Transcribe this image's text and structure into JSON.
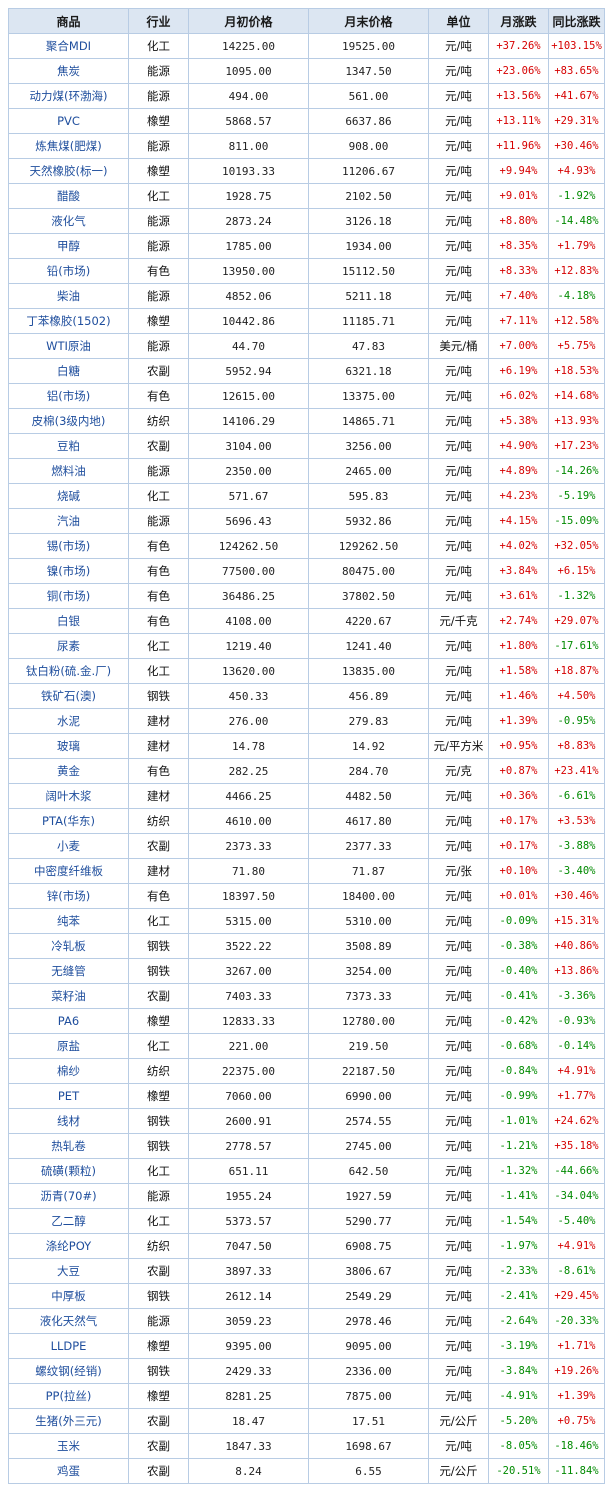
{
  "colors": {
    "up": "#d60000",
    "down": "#008a00",
    "header_bg": "#dce6f2",
    "border": "#b8cce4",
    "name_text": "#1f4e9d"
  },
  "headers": [
    "商品",
    "行业",
    "月初价格",
    "月末价格",
    "单位",
    "月涨跌",
    "同比涨跌"
  ],
  "rows": [
    [
      "聚合MDI",
      "化工",
      "14225.00",
      "19525.00",
      "元/吨",
      "+37.26%",
      "+103.15%"
    ],
    [
      "焦炭",
      "能源",
      "1095.00",
      "1347.50",
      "元/吨",
      "+23.06%",
      "+83.65%"
    ],
    [
      "动力煤(环渤海)",
      "能源",
      "494.00",
      "561.00",
      "元/吨",
      "+13.56%",
      "+41.67%"
    ],
    [
      "PVC",
      "橡塑",
      "5868.57",
      "6637.86",
      "元/吨",
      "+13.11%",
      "+29.31%"
    ],
    [
      "炼焦煤(肥煤)",
      "能源",
      "811.00",
      "908.00",
      "元/吨",
      "+11.96%",
      "+30.46%"
    ],
    [
      "天然橡胶(标一)",
      "橡塑",
      "10193.33",
      "11206.67",
      "元/吨",
      "+9.94%",
      "+4.93%"
    ],
    [
      "醋酸",
      "化工",
      "1928.75",
      "2102.50",
      "元/吨",
      "+9.01%",
      "-1.92%"
    ],
    [
      "液化气",
      "能源",
      "2873.24",
      "3126.18",
      "元/吨",
      "+8.80%",
      "-14.48%"
    ],
    [
      "甲醇",
      "能源",
      "1785.00",
      "1934.00",
      "元/吨",
      "+8.35%",
      "+1.79%"
    ],
    [
      "铅(市场)",
      "有色",
      "13950.00",
      "15112.50",
      "元/吨",
      "+8.33%",
      "+12.83%"
    ],
    [
      "柴油",
      "能源",
      "4852.06",
      "5211.18",
      "元/吨",
      "+7.40%",
      "-4.18%"
    ],
    [
      "丁苯橡胶(1502)",
      "橡塑",
      "10442.86",
      "11185.71",
      "元/吨",
      "+7.11%",
      "+12.58%"
    ],
    [
      "WTI原油",
      "能源",
      "44.70",
      "47.83",
      "美元/桶",
      "+7.00%",
      "+5.75%"
    ],
    [
      "白糖",
      "农副",
      "5952.94",
      "6321.18",
      "元/吨",
      "+6.19%",
      "+18.53%"
    ],
    [
      "铝(市场)",
      "有色",
      "12615.00",
      "13375.00",
      "元/吨",
      "+6.02%",
      "+14.68%"
    ],
    [
      "皮棉(3级内地)",
      "纺织",
      "14106.29",
      "14865.71",
      "元/吨",
      "+5.38%",
      "+13.93%"
    ],
    [
      "豆粕",
      "农副",
      "3104.00",
      "3256.00",
      "元/吨",
      "+4.90%",
      "+17.23%"
    ],
    [
      "燃料油",
      "能源",
      "2350.00",
      "2465.00",
      "元/吨",
      "+4.89%",
      "-14.26%"
    ],
    [
      "烧碱",
      "化工",
      "571.67",
      "595.83",
      "元/吨",
      "+4.23%",
      "-5.19%"
    ],
    [
      "汽油",
      "能源",
      "5696.43",
      "5932.86",
      "元/吨",
      "+4.15%",
      "-15.09%"
    ],
    [
      "锡(市场)",
      "有色",
      "124262.50",
      "129262.50",
      "元/吨",
      "+4.02%",
      "+32.05%"
    ],
    [
      "镍(市场)",
      "有色",
      "77500.00",
      "80475.00",
      "元/吨",
      "+3.84%",
      "+6.15%"
    ],
    [
      "铜(市场)",
      "有色",
      "36486.25",
      "37802.50",
      "元/吨",
      "+3.61%",
      "-1.32%"
    ],
    [
      "白银",
      "有色",
      "4108.00",
      "4220.67",
      "元/千克",
      "+2.74%",
      "+29.07%"
    ],
    [
      "尿素",
      "化工",
      "1219.40",
      "1241.40",
      "元/吨",
      "+1.80%",
      "-17.61%"
    ],
    [
      "钛白粉(硫.金.厂)",
      "化工",
      "13620.00",
      "13835.00",
      "元/吨",
      "+1.58%",
      "+18.87%"
    ],
    [
      "铁矿石(澳)",
      "钢铁",
      "450.33",
      "456.89",
      "元/吨",
      "+1.46%",
      "+4.50%"
    ],
    [
      "水泥",
      "建材",
      "276.00",
      "279.83",
      "元/吨",
      "+1.39%",
      "-0.95%"
    ],
    [
      "玻璃",
      "建材",
      "14.78",
      "14.92",
      "元/平方米",
      "+0.95%",
      "+8.83%"
    ],
    [
      "黄金",
      "有色",
      "282.25",
      "284.70",
      "元/克",
      "+0.87%",
      "+23.41%"
    ],
    [
      "阔叶木浆",
      "建材",
      "4466.25",
      "4482.50",
      "元/吨",
      "+0.36%",
      "-6.61%"
    ],
    [
      "PTA(华东)",
      "纺织",
      "4610.00",
      "4617.80",
      "元/吨",
      "+0.17%",
      "+3.53%"
    ],
    [
      "小麦",
      "农副",
      "2373.33",
      "2377.33",
      "元/吨",
      "+0.17%",
      "-3.88%"
    ],
    [
      "中密度纤维板",
      "建材",
      "71.80",
      "71.87",
      "元/张",
      "+0.10%",
      "-3.40%"
    ],
    [
      "锌(市场)",
      "有色",
      "18397.50",
      "18400.00",
      "元/吨",
      "+0.01%",
      "+30.46%"
    ],
    [
      "纯苯",
      "化工",
      "5315.00",
      "5310.00",
      "元/吨",
      "-0.09%",
      "+15.31%"
    ],
    [
      "冷轧板",
      "钢铁",
      "3522.22",
      "3508.89",
      "元/吨",
      "-0.38%",
      "+40.86%"
    ],
    [
      "无缝管",
      "钢铁",
      "3267.00",
      "3254.00",
      "元/吨",
      "-0.40%",
      "+13.86%"
    ],
    [
      "菜籽油",
      "农副",
      "7403.33",
      "7373.33",
      "元/吨",
      "-0.41%",
      "-3.36%"
    ],
    [
      "PA6",
      "橡塑",
      "12833.33",
      "12780.00",
      "元/吨",
      "-0.42%",
      "-0.93%"
    ],
    [
      "原盐",
      "化工",
      "221.00",
      "219.50",
      "元/吨",
      "-0.68%",
      "-0.14%"
    ],
    [
      "棉纱",
      "纺织",
      "22375.00",
      "22187.50",
      "元/吨",
      "-0.84%",
      "+4.91%"
    ],
    [
      "PET",
      "橡塑",
      "7060.00",
      "6990.00",
      "元/吨",
      "-0.99%",
      "+1.77%"
    ],
    [
      "线材",
      "钢铁",
      "2600.91",
      "2574.55",
      "元/吨",
      "-1.01%",
      "+24.62%"
    ],
    [
      "热轧卷",
      "钢铁",
      "2778.57",
      "2745.00",
      "元/吨",
      "-1.21%",
      "+35.18%"
    ],
    [
      "硫磺(颗粒)",
      "化工",
      "651.11",
      "642.50",
      "元/吨",
      "-1.32%",
      "-44.66%"
    ],
    [
      "沥青(70#)",
      "能源",
      "1955.24",
      "1927.59",
      "元/吨",
      "-1.41%",
      "-34.04%"
    ],
    [
      "乙二醇",
      "化工",
      "5373.57",
      "5290.77",
      "元/吨",
      "-1.54%",
      "-5.40%"
    ],
    [
      "涤纶POY",
      "纺织",
      "7047.50",
      "6908.75",
      "元/吨",
      "-1.97%",
      "+4.91%"
    ],
    [
      "大豆",
      "农副",
      "3897.33",
      "3806.67",
      "元/吨",
      "-2.33%",
      "-8.61%"
    ],
    [
      "中厚板",
      "钢铁",
      "2612.14",
      "2549.29",
      "元/吨",
      "-2.41%",
      "+29.45%"
    ],
    [
      "液化天然气",
      "能源",
      "3059.23",
      "2978.46",
      "元/吨",
      "-2.64%",
      "-20.33%"
    ],
    [
      "LLDPE",
      "橡塑",
      "9395.00",
      "9095.00",
      "元/吨",
      "-3.19%",
      "+1.71%"
    ],
    [
      "螺纹钢(经销)",
      "钢铁",
      "2429.33",
      "2336.00",
      "元/吨",
      "-3.84%",
      "+19.26%"
    ],
    [
      "PP(拉丝)",
      "橡塑",
      "8281.25",
      "7875.00",
      "元/吨",
      "-4.91%",
      "+1.39%"
    ],
    [
      "生猪(外三元)",
      "农副",
      "18.47",
      "17.51",
      "元/公斤",
      "-5.20%",
      "+0.75%"
    ],
    [
      "玉米",
      "农副",
      "1847.33",
      "1698.67",
      "元/吨",
      "-8.05%",
      "-18.46%"
    ],
    [
      "鸡蛋",
      "农副",
      "8.24",
      "6.55",
      "元/公斤",
      "-20.51%",
      "-11.84%"
    ]
  ]
}
